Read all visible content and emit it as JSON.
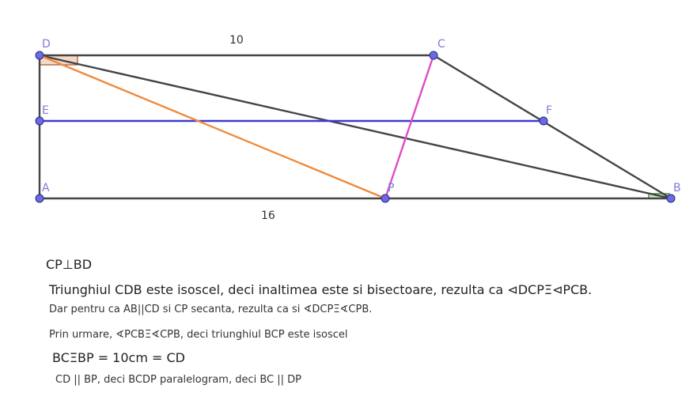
{
  "points": {
    "D": "D",
    "C": "C",
    "E": "E",
    "F": "F",
    "A": "A",
    "P": "P",
    "B": "B"
  },
  "lengths": {
    "top": "10",
    "bottom": "16"
  },
  "colors": {
    "segment": "#444444",
    "midline": "#3b3bd8",
    "dp": "#f08a3c",
    "cp": "#e04cc8",
    "point_fill": "#6a6ae6",
    "right_angle_fill": "#f4d9c6"
  },
  "text": {
    "line1": "CP⊥BD",
    "line2": "Triunghiul CDB este isoscel,  deci inaltimea este si bisectoare,  rezulta ca ⊲DCPΞ⊲PCB.",
    "line3": "Dar pentru ca AB||CD si CP secanta, rezulta ca si ∢DCPΞ∢CPB.",
    "line4": "Prin urmare, ∢PCBΞ∢CPB, deci triunghiul BCP este isoscel",
    "line5": "BCΞBP = 10cm = CD",
    "line6": "CD || BP,  deci BCDP  paralelogram,  deci  BC || DP"
  }
}
